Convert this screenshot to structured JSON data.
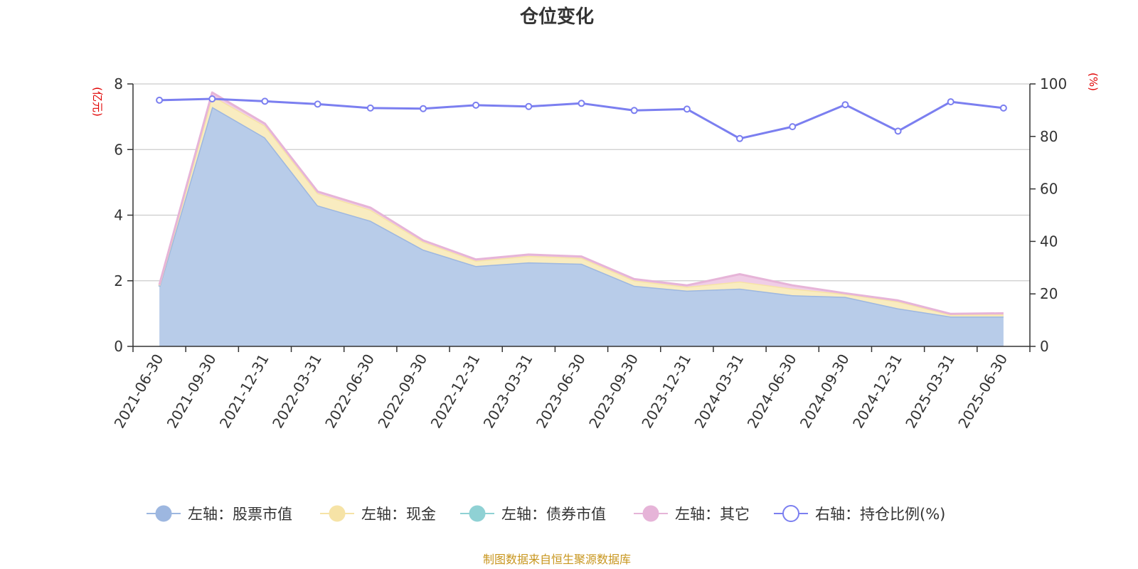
{
  "chart_data": {
    "type": "area",
    "title": "仓位变化",
    "left_unit": "(亿元)",
    "right_unit": "(%)",
    "source": "制图数据来自恒生聚源数据库",
    "categories": [
      "2021-06-30",
      "2021-09-30",
      "2021-12-31",
      "2022-03-31",
      "2022-06-30",
      "2022-09-30",
      "2022-12-31",
      "2023-03-31",
      "2023-06-30",
      "2023-09-30",
      "2023-12-31",
      "2024-03-31",
      "2024-06-30",
      "2024-09-30",
      "2024-12-31",
      "2025-03-31",
      "2025-06-30"
    ],
    "ylim_left": [
      0,
      8
    ],
    "yticks_left": [
      "0",
      "2",
      "4",
      "6",
      "8"
    ],
    "ylim_right": [
      0,
      100
    ],
    "yticks_right": [
      "0",
      "20",
      "40",
      "60",
      "80",
      "100"
    ],
    "grid": true,
    "legend_position": "bottom",
    "series": [
      {
        "name": "左轴：股票市值",
        "axis": "left",
        "kind": "stack",
        "color": "#9db7e0",
        "fill": "#b8cce9",
        "values": [
          1.82,
          7.3,
          6.37,
          4.3,
          3.83,
          2.95,
          2.45,
          2.56,
          2.52,
          1.85,
          1.7,
          1.76,
          1.56,
          1.51,
          1.16,
          0.91,
          0.91
        ]
      },
      {
        "name": "左轴：现金",
        "axis": "left",
        "kind": "stack",
        "color": "#f6e3a6",
        "fill": "#f9ecc0",
        "values": [
          0.04,
          0.34,
          0.36,
          0.37,
          0.34,
          0.24,
          0.16,
          0.2,
          0.18,
          0.16,
          0.12,
          0.22,
          0.2,
          0.09,
          0.21,
          0.06,
          0.06
        ]
      },
      {
        "name": "左轴：债券市值",
        "axis": "left",
        "kind": "stack",
        "color": "#8fd1d4",
        "fill": "#b3e2e3",
        "values": [
          0,
          0,
          0,
          0,
          0,
          0,
          0,
          0,
          0,
          0,
          0,
          0,
          0,
          0,
          0,
          0,
          0
        ]
      },
      {
        "name": "左轴：其它",
        "axis": "left",
        "kind": "stack",
        "color": "#e6b4d8",
        "fill": "#f0cde6",
        "values": [
          0.02,
          0.1,
          0.06,
          0.05,
          0.06,
          0.04,
          0.04,
          0.04,
          0.04,
          0.04,
          0.04,
          0.22,
          0.1,
          0.02,
          0.03,
          0.02,
          0.04
        ]
      },
      {
        "name": "右轴：持仓比例(%)",
        "axis": "right",
        "kind": "line",
        "color": "#7b7ff0",
        "values": [
          93.8,
          94.3,
          93.4,
          92.3,
          90.8,
          90.6,
          91.9,
          91.4,
          92.6,
          89.9,
          90.4,
          79.2,
          83.7,
          92.1,
          82.0,
          93.2,
          90.8
        ]
      }
    ]
  }
}
